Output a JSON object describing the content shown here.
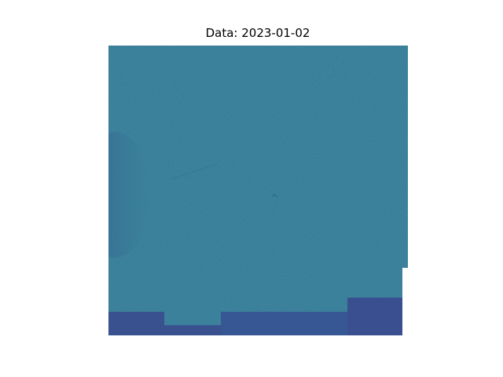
{
  "figure": {
    "title": "Data: 2023-01-02"
  },
  "image": {
    "description_colors": {
      "main": "#2e7692",
      "dark_band": "#3a4f8f",
      "mid_band": "#31688e",
      "background": "#ffffff"
    }
  }
}
